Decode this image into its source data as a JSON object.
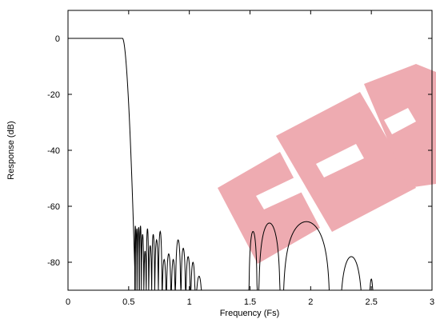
{
  "chart_data": {
    "type": "line",
    "title": "",
    "xlabel": "Frequency (Fs)",
    "ylabel": "Response (dB)",
    "xlim": [
      0,
      3
    ],
    "ylim": [
      -90,
      10
    ],
    "xticks": [
      0,
      0.5,
      1,
      1.5,
      2,
      2.5,
      3
    ],
    "xtick_labels": [
      "0",
      "0.5",
      "1",
      "1.5",
      "2",
      "2.5",
      "3"
    ],
    "yticks": [
      0,
      -20,
      -40,
      -60,
      -80
    ],
    "ytick_labels": [
      "0",
      "-20",
      "-40",
      "-60",
      "-80"
    ],
    "grid": false,
    "legend": "none",
    "line_color": "#000000",
    "passband": {
      "level_db": 0,
      "edge": 0.45,
      "rolloff_end": 0.55,
      "rolloff_level_db": -82
    },
    "stopband_lobes": [
      {
        "a": 0.55,
        "b": 0.56,
        "peak": -67
      },
      {
        "a": 0.56,
        "b": 0.575,
        "peak": -68
      },
      {
        "a": 0.575,
        "b": 0.59,
        "peak": -67.5
      },
      {
        "a": 0.59,
        "b": 0.605,
        "peak": -67
      },
      {
        "a": 0.605,
        "b": 0.625,
        "peak": -70
      },
      {
        "a": 0.625,
        "b": 0.645,
        "peak": -76
      },
      {
        "a": 0.645,
        "b": 0.665,
        "peak": -68
      },
      {
        "a": 0.665,
        "b": 0.69,
        "peak": -74
      },
      {
        "a": 0.69,
        "b": 0.715,
        "peak": -70
      },
      {
        "a": 0.715,
        "b": 0.745,
        "peak": -72
      },
      {
        "a": 0.745,
        "b": 0.775,
        "peak": -69
      },
      {
        "a": 0.775,
        "b": 0.81,
        "peak": -79
      },
      {
        "a": 0.81,
        "b": 0.85,
        "peak": -77
      },
      {
        "a": 0.85,
        "b": 0.885,
        "peak": -79
      },
      {
        "a": 0.885,
        "b": 0.93,
        "peak": -72
      },
      {
        "a": 0.93,
        "b": 0.97,
        "peak": -75
      },
      {
        "a": 0.97,
        "b": 1.01,
        "peak": -78
      },
      {
        "a": 1.01,
        "b": 1.05,
        "peak": -80
      },
      {
        "a": 1.05,
        "b": 1.11,
        "peak": -85
      },
      {
        "a": 1.49,
        "b": 1.56,
        "peak": -69
      },
      {
        "a": 1.57,
        "b": 1.75,
        "peak": -66
      },
      {
        "a": 1.77,
        "b": 2.16,
        "peak": -65.5
      },
      {
        "a": 2.24,
        "b": 2.43,
        "peak": -78
      },
      {
        "a": 2.48,
        "b": 2.52,
        "peak": -86
      }
    ]
  }
}
